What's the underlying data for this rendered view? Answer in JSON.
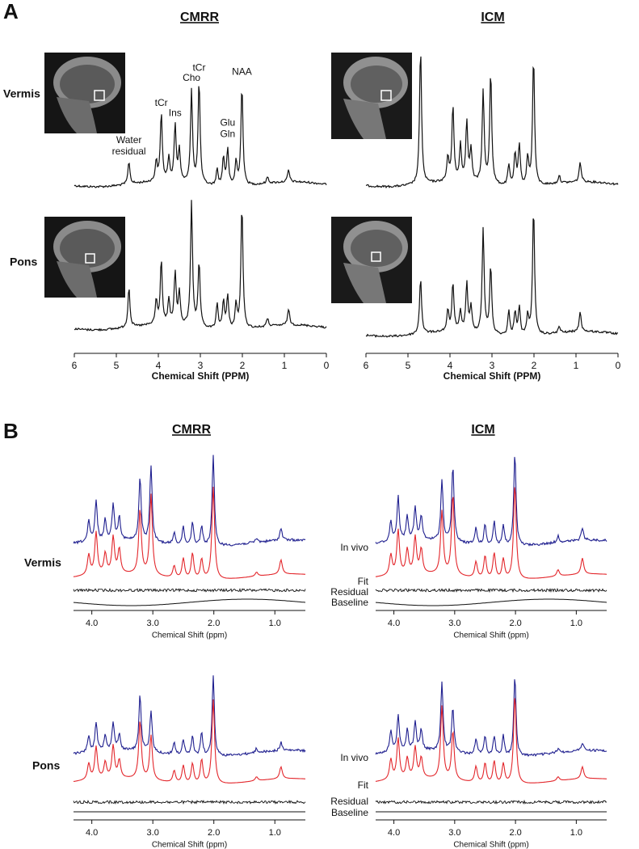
{
  "panel_a": {
    "label": "A",
    "columns": [
      "CMRR",
      "ICM"
    ],
    "rows": [
      "Vermis",
      "Pons"
    ],
    "x_label": "Chemical Shift (PPM)",
    "xlim": [
      6,
      0
    ],
    "xticks": [
      6,
      5,
      4,
      3,
      2,
      1,
      0
    ],
    "peak_ppm": [
      4.7,
      4.05,
      3.93,
      3.75,
      3.6,
      3.5,
      3.21,
      3.03,
      2.6,
      2.45,
      2.35,
      2.15,
      2.01,
      1.4,
      0.9
    ],
    "spectra": [
      [
        28,
        25,
        85,
        30,
        70,
        40,
        115,
        128,
        20,
        35,
        45,
        30,
        125,
        8,
        15
      ],
      [
        170,
        30,
        95,
        45,
        75,
        40,
        115,
        140,
        25,
        40,
        50,
        35,
        160,
        10,
        25
      ],
      [
        50,
        30,
        80,
        30,
        65,
        40,
        155,
        80,
        30,
        35,
        40,
        30,
        155,
        10,
        20
      ],
      [
        70,
        25,
        60,
        25,
        60,
        30,
        130,
        85,
        30,
        30,
        35,
        25,
        160,
        8,
        25
      ]
    ],
    "annotations": [
      {
        "lines": [
          "Water",
          "residual"
        ],
        "ppm": 4.7
      },
      {
        "lines": [
          "tCr"
        ],
        "ppm": 3.93
      },
      {
        "lines": [
          "Ins"
        ],
        "ppm": 3.6
      },
      {
        "lines": [
          "Cho"
        ],
        "ppm": 3.21
      },
      {
        "lines": [
          "tCr"
        ],
        "ppm": 3.03
      },
      {
        "lines": [
          "Glu",
          "Gln"
        ],
        "ppm": 2.35
      },
      {
        "lines": [
          "NAA"
        ],
        "ppm": 2.01
      }
    ]
  },
  "panel_b": {
    "label": "B",
    "columns": [
      "CMRR",
      "ICM"
    ],
    "rows": [
      "Vermis",
      "Pons"
    ],
    "x_label": "Chemical Shift (ppm)",
    "xlim": [
      4.3,
      0.5
    ],
    "xticks": [
      {
        "value": 4,
        "label": "4.0"
      },
      {
        "value": 3,
        "label": "3.0"
      },
      {
        "value": 2,
        "label": "2.0"
      },
      {
        "value": 1,
        "label": "1.0"
      }
    ],
    "traces": [
      {
        "name": "In vivo",
        "color": "#1f1f8f"
      },
      {
        "name": "Fit",
        "color": "#e3262b"
      },
      {
        "name": "Residual",
        "color": "#111111"
      },
      {
        "name": "Baseline",
        "color": "#111111"
      }
    ],
    "peak_ppm": [
      4.05,
      3.93,
      3.78,
      3.65,
      3.55,
      3.21,
      3.03,
      2.65,
      2.5,
      2.35,
      2.2,
      2.01,
      1.3,
      0.9
    ],
    "spectra": [
      {
        "in_vivo": [
          25,
          50,
          25,
          45,
          30,
          78,
          95,
          15,
          22,
          30,
          25,
          112,
          5,
          15
        ],
        "fit": [
          25,
          52,
          25,
          45,
          30,
          80,
          100,
          15,
          25,
          32,
          25,
          115,
          5,
          18
        ]
      },
      {
        "in_vivo": [
          25,
          55,
          30,
          40,
          30,
          75,
          95,
          20,
          25,
          30,
          25,
          115,
          8,
          15
        ],
        "fit": [
          25,
          55,
          30,
          45,
          30,
          78,
          100,
          20,
          28,
          32,
          25,
          118,
          8,
          20
        ]
      },
      {
        "in_vivo": [
          20,
          35,
          20,
          35,
          20,
          70,
          50,
          15,
          20,
          25,
          30,
          100,
          5,
          10
        ],
        "fit": [
          20,
          40,
          20,
          40,
          22,
          72,
          55,
          15,
          22,
          25,
          30,
          105,
          5,
          15
        ]
      },
      {
        "in_vivo": [
          25,
          45,
          25,
          35,
          25,
          85,
          55,
          20,
          25,
          25,
          25,
          100,
          5,
          10
        ],
        "fit": [
          25,
          50,
          25,
          38,
          25,
          90,
          60,
          20,
          25,
          28,
          25,
          110,
          5,
          15
        ]
      }
    ]
  }
}
